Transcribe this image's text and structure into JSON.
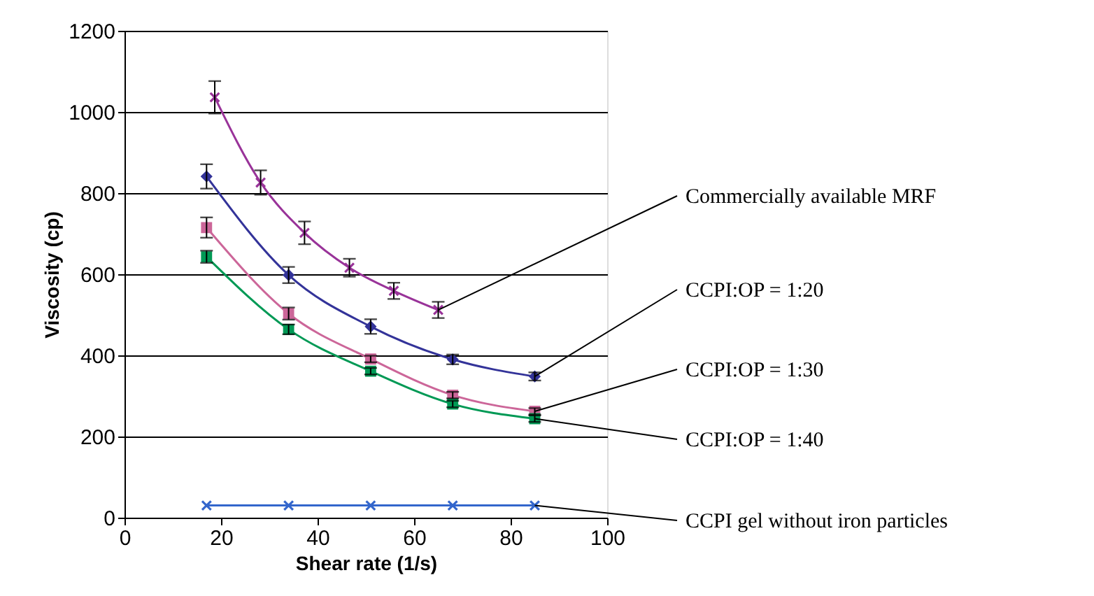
{
  "chart_data": {
    "type": "line",
    "xlabel": "Shear rate (1/s)",
    "ylabel": "Viscosity (cp)",
    "xlim": [
      0,
      100
    ],
    "xticks": [
      0,
      20,
      40,
      60,
      80,
      100
    ],
    "ylim": [
      0,
      1200
    ],
    "yticks": [
      0,
      200,
      400,
      600,
      800,
      1000,
      1200
    ],
    "grid": "y",
    "legend": false,
    "series": [
      {
        "name": "Commercially available MRF",
        "color": "#993399",
        "marker": "cross",
        "x": [
          18.7,
          28.2,
          37.3,
          46.6,
          55.8,
          65
        ],
        "values": [
          1036,
          826,
          702,
          616,
          559,
          512
        ],
        "errors": [
          40,
          30,
          28,
          22,
          20,
          20
        ]
      },
      {
        "name": "CCPI:OP = 1:20",
        "color": "#333399",
        "marker": "diamond",
        "x": [
          17,
          34,
          51,
          68,
          85
        ],
        "values": [
          841,
          598,
          471,
          390,
          348
        ],
        "errors": [
          30,
          20,
          18,
          12,
          10
        ]
      },
      {
        "name": "CCPI:OP = 1:30",
        "color": "#cc6699",
        "marker": "square",
        "x": [
          17,
          34,
          51,
          68,
          85
        ],
        "values": [
          715,
          503,
          391,
          302,
          262
        ],
        "errors": [
          25,
          15,
          8,
          8,
          8
        ]
      },
      {
        "name": "CCPI:OP = 1:40",
        "color": "#009955",
        "marker": "square",
        "x": [
          17,
          34,
          51,
          68,
          85
        ],
        "values": [
          643,
          464,
          361,
          280,
          244
        ],
        "errors": [
          15,
          12,
          8,
          8,
          8
        ]
      },
      {
        "name": "CCPI gel without iron particles",
        "color": "#3366cc",
        "marker": "cross",
        "x": [
          17,
          34,
          51,
          68,
          85
        ],
        "values": [
          30,
          30,
          30,
          30,
          30
        ]
      }
    ]
  }
}
